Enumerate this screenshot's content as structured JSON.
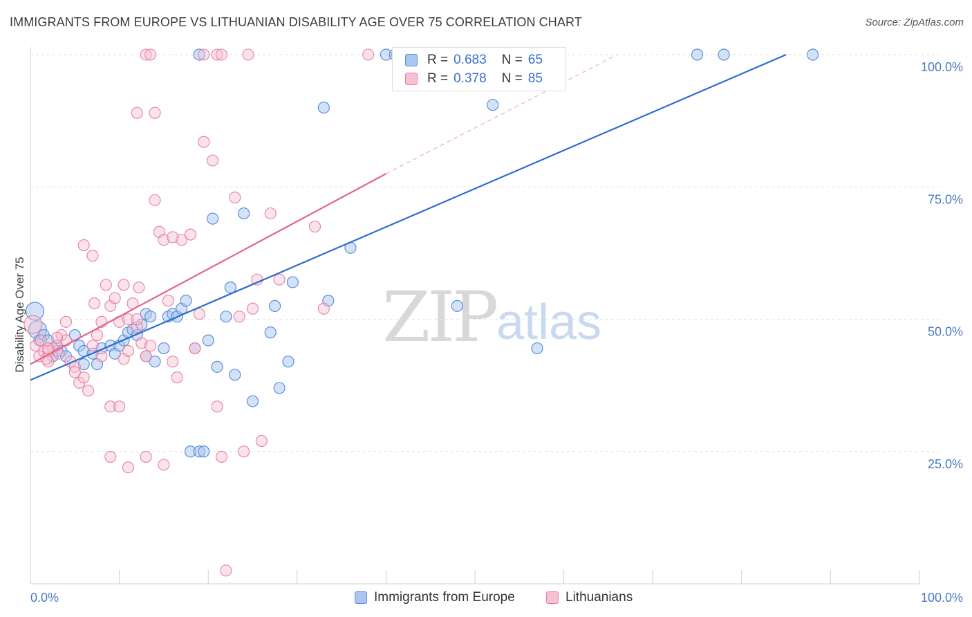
{
  "title": "IMMIGRANTS FROM EUROPE VS LITHUANIAN DISABILITY AGE OVER 75 CORRELATION CHART",
  "source": "Source: ZipAtlas.com",
  "watermark": {
    "zip": "ZIP",
    "atlas": "atlas"
  },
  "colors": {
    "blue": "#5b8fdb",
    "blue_fill": "#a9c5f0",
    "pink": "#e87ea0",
    "pink_fill": "#f6c1d2",
    "blue_line": "#2a6dd0",
    "pink_line": "#e0658e"
  },
  "legend": {
    "rows": [
      {
        "r_label": "R =",
        "r_value": "0.683",
        "n_label": "N =",
        "n_value": "65"
      },
      {
        "r_label": "R =",
        "r_value": "0.378",
        "n_label": "N =",
        "n_value": "85"
      }
    ]
  },
  "bottom_legend": {
    "series1": "Immigrants from Europe",
    "series2": "Lithuanians"
  },
  "chart_data": {
    "type": "scatter",
    "title": "IMMIGRANTS FROM EUROPE VS LITHUANIAN DISABILITY AGE OVER 75 CORRELATION CHART",
    "xlabel": "",
    "ylabel": "Disability Age Over 75",
    "xlim": [
      0,
      100
    ],
    "ylim": [
      0,
      100
    ],
    "x_tick_labels": [
      "0.0%",
      "100.0%"
    ],
    "y_tick_labels": [
      "25.0%",
      "50.0%",
      "75.0%",
      "100.0%"
    ],
    "y_ticks": [
      25,
      50,
      75,
      100
    ],
    "grid": true,
    "legend_position": "top-center",
    "series": [
      {
        "name": "Immigrants from Europe",
        "points": [
          [
            0.5,
            51.5
          ],
          [
            0.8,
            48
          ],
          [
            1,
            46
          ],
          [
            1.5,
            47
          ],
          [
            2,
            46
          ],
          [
            2.5,
            43
          ],
          [
            3,
            45
          ],
          [
            3.5,
            44
          ],
          [
            4,
            43
          ],
          [
            5,
            47
          ],
          [
            5.5,
            45
          ],
          [
            6,
            44
          ],
          [
            7,
            43.5
          ],
          [
            7.5,
            41.5
          ],
          [
            8,
            44.5
          ],
          [
            9,
            45
          ],
          [
            9.5,
            43.5
          ],
          [
            10,
            45
          ],
          [
            10.5,
            46
          ],
          [
            11,
            47.5
          ],
          [
            11.5,
            48
          ],
          [
            12,
            47
          ],
          [
            12.5,
            49
          ],
          [
            13,
            51
          ],
          [
            13.5,
            50.5
          ],
          [
            13,
            43
          ],
          [
            14,
            42
          ],
          [
            15,
            44.5
          ],
          [
            15.5,
            50.5
          ],
          [
            16,
            51
          ],
          [
            16.5,
            50.5
          ],
          [
            17,
            52
          ],
          [
            17.5,
            53.5
          ],
          [
            18,
            25
          ],
          [
            18.5,
            44.5
          ],
          [
            19,
            25
          ],
          [
            19.5,
            25
          ],
          [
            20,
            46
          ],
          [
            21,
            41
          ],
          [
            22,
            50.5
          ],
          [
            22.5,
            56
          ],
          [
            23,
            39.5
          ],
          [
            24,
            70
          ],
          [
            25,
            34.5
          ],
          [
            27,
            47.5
          ],
          [
            27.5,
            52.5
          ],
          [
            28,
            37
          ],
          [
            29,
            42
          ],
          [
            29.5,
            57
          ],
          [
            33,
            90
          ],
          [
            33.5,
            53.5
          ],
          [
            36,
            63.5
          ],
          [
            20.5,
            69
          ],
          [
            48,
            52.5
          ],
          [
            52,
            90.5
          ],
          [
            57,
            44.5
          ],
          [
            19,
            100
          ],
          [
            40,
            100
          ],
          [
            41,
            100
          ],
          [
            49,
            100
          ],
          [
            75,
            100
          ],
          [
            78,
            100
          ],
          [
            88,
            100
          ],
          [
            6,
            41.5
          ],
          [
            3,
            44
          ]
        ],
        "fit": {
          "x0": 0,
          "y0": 38.5,
          "x1": 85,
          "y1": 100
        }
      },
      {
        "name": "Lithuanians",
        "points": [
          [
            0.3,
            49
          ],
          [
            0.6,
            45
          ],
          [
            1,
            43
          ],
          [
            1.2,
            46
          ],
          [
            1.5,
            44
          ],
          [
            2,
            42
          ],
          [
            2.5,
            44.5
          ],
          [
            3,
            45
          ],
          [
            3.2,
            43.5
          ],
          [
            3.5,
            47
          ],
          [
            4,
            46
          ],
          [
            4.5,
            42
          ],
          [
            5,
            41
          ],
          [
            5.5,
            38
          ],
          [
            6,
            39
          ],
          [
            6.5,
            36.5
          ],
          [
            7,
            45
          ],
          [
            7.2,
            53
          ],
          [
            7.5,
            47
          ],
          [
            8,
            43
          ],
          [
            8.5,
            56.5
          ],
          [
            9,
            52.5
          ],
          [
            9.5,
            54
          ],
          [
            10,
            49.5
          ],
          [
            10.5,
            56.5
          ],
          [
            11,
            50
          ],
          [
            11.5,
            53
          ],
          [
            12,
            48.5
          ],
          [
            12.2,
            56
          ],
          [
            12.5,
            45.5
          ],
          [
            13,
            43
          ],
          [
            13.5,
            45
          ],
          [
            14,
            72.5
          ],
          [
            14.5,
            66.5
          ],
          [
            15,
            65
          ],
          [
            15.5,
            53.5
          ],
          [
            16,
            42
          ],
          [
            16.5,
            39
          ],
          [
            17,
            65
          ],
          [
            18,
            66
          ],
          [
            18.5,
            44.5
          ],
          [
            19,
            51
          ],
          [
            19.5,
            83.5
          ],
          [
            20.5,
            80
          ],
          [
            21,
            33.5
          ],
          [
            21.5,
            24
          ],
          [
            22,
            2.5
          ],
          [
            23,
            73
          ],
          [
            23.5,
            50.5
          ],
          [
            24,
            25
          ],
          [
            25,
            52
          ],
          [
            25.5,
            57.5
          ],
          [
            26,
            27
          ],
          [
            27,
            70
          ],
          [
            28,
            57.5
          ],
          [
            32,
            67.5
          ],
          [
            33,
            52
          ],
          [
            2,
            44
          ],
          [
            4,
            49.5
          ],
          [
            6,
            64
          ],
          [
            7,
            62
          ],
          [
            9,
            33.5
          ],
          [
            10,
            33.5
          ],
          [
            11,
            22
          ],
          [
            12,
            89
          ],
          [
            13,
            24
          ],
          [
            14,
            89
          ],
          [
            15,
            22.5
          ],
          [
            9,
            24
          ],
          [
            13,
            100
          ],
          [
            13.5,
            100
          ],
          [
            19.5,
            100
          ],
          [
            21,
            100
          ],
          [
            21.5,
            100
          ],
          [
            24.5,
            100
          ],
          [
            38,
            100
          ],
          [
            12,
            50
          ],
          [
            10.5,
            42.5
          ],
          [
            5,
            40
          ],
          [
            2,
            44.5
          ],
          [
            3,
            46.5
          ],
          [
            1.8,
            42.5
          ],
          [
            8,
            49.5
          ],
          [
            11,
            44
          ],
          [
            16,
            65.5
          ]
        ],
        "fit": {
          "x0": 0,
          "y0": 41.5,
          "x1": 40,
          "y1": 77.5
        },
        "fit_extension": {
          "x0": 40,
          "y0": 77.5,
          "x1": 66,
          "y1": 100
        }
      }
    ]
  }
}
